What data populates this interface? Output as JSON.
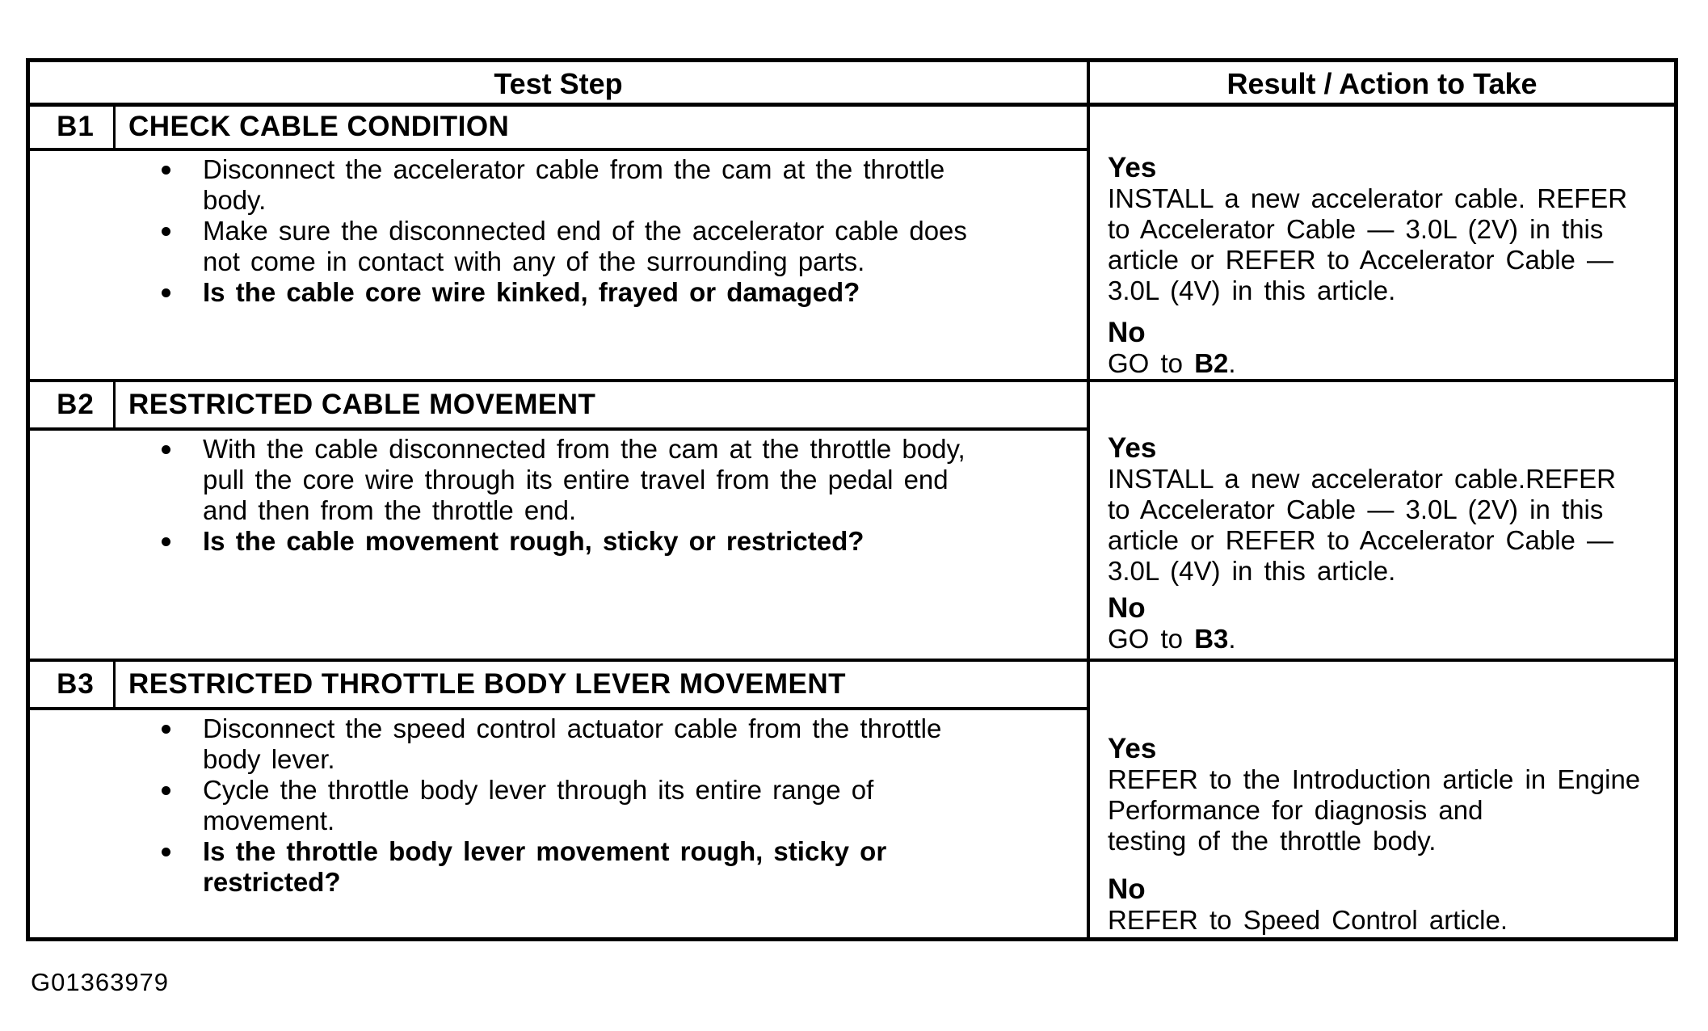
{
  "footer_id": "G01363979",
  "table": {
    "header": {
      "test_step": "Test Step",
      "result": "Result / Action to Take"
    },
    "sections": [
      {
        "id": "B1",
        "title": "CHECK CABLE CONDITION",
        "bullets": [
          {
            "lines": [
              "Disconnect the accelerator cable from the cam at the throttle",
              "body."
            ]
          },
          {
            "lines": [
              "Make sure the disconnected end of the accelerator cable does",
              "not come in contact with any of the surrounding parts."
            ]
          },
          {
            "lines": [
              "Is the cable core wire kinked, frayed or damaged?"
            ]
          }
        ],
        "yes_label": "Yes",
        "yes_lines": [
          "INSTALL a new accelerator cable. REFER",
          "to Accelerator Cable — 3.0L (2V) in this",
          "article or REFER to Accelerator Cable —",
          "3.0L (4V) in this article."
        ],
        "no_label": "No",
        "no_prefix": "GO to ",
        "no_bold": "B2",
        "no_suffix": "."
      },
      {
        "id": "B2",
        "title": "RESTRICTED CABLE MOVEMENT",
        "bullets": [
          {
            "lines": [
              "With the cable disconnected from the cam at the throttle body,",
              "pull the core wire through its entire travel from the pedal end",
              "and then from the throttle end."
            ]
          },
          {
            "lines": [
              "Is the cable movement rough, sticky or restricted?"
            ]
          }
        ],
        "yes_label": "Yes",
        "yes_lines": [
          "INSTALL a new accelerator cable.REFER",
          "to Accelerator Cable — 3.0L (2V) in this",
          "article or REFER to Accelerator Cable —",
          "3.0L (4V) in this article."
        ],
        "no_label": "No",
        "no_prefix": "GO to ",
        "no_bold": "B3",
        "no_suffix": "."
      },
      {
        "id": "B3",
        "title": "RESTRICTED THROTTLE BODY LEVER MOVEMENT",
        "bullets": [
          {
            "lines": [
              "Disconnect the speed control actuator cable from the throttle",
              "body lever."
            ]
          },
          {
            "lines": [
              "Cycle the throttle body lever through its entire range of",
              "movement."
            ]
          },
          {
            "lines": [
              "Is the throttle body lever movement rough, sticky or",
              "restricted?"
            ]
          }
        ],
        "yes_label": "Yes",
        "yes_lines": [
          "REFER to the Introduction article in Engine",
          "Performance for diagnosis and",
          "testing of the throttle body."
        ],
        "no_label": "No",
        "no_prefix": "REFER to Speed Control article.",
        "no_bold": "",
        "no_suffix": ""
      }
    ]
  }
}
